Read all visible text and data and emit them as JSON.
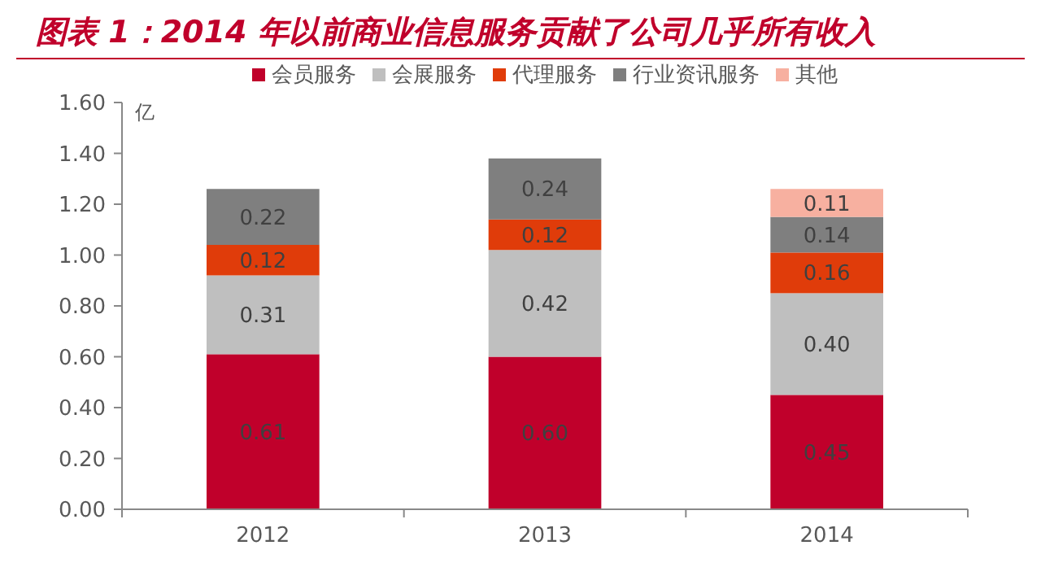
{
  "chart_data": {
    "type": "bar",
    "title": "图表 1：2014 年以前商业信息服务贡献了公司几乎所有收入",
    "ylabel": "亿",
    "categories": [
      "2012",
      "2013",
      "2014"
    ],
    "stacked": true,
    "legend": "top",
    "grid": false,
    "ylim": [
      0,
      1.6
    ],
    "yticks": [
      {
        "value": 0,
        "label": "0.00"
      },
      {
        "value": 0.2,
        "label": "0.20"
      },
      {
        "value": 0.4,
        "label": "0.40"
      },
      {
        "value": 0.6,
        "label": "0.60"
      },
      {
        "value": 0.8,
        "label": "0.80"
      },
      {
        "value": 1,
        "label": "1.00"
      },
      {
        "value": 1.2,
        "label": "1.20"
      },
      {
        "value": 1.4,
        "label": "1.40"
      },
      {
        "value": 1.6,
        "label": "1.60"
      }
    ],
    "series": [
      {
        "name": "会员服务",
        "color": "#c0002b",
        "values": [
          0.61,
          0.6,
          0.45
        ],
        "value_labels": [
          "0.61",
          "0.60",
          "0.45"
        ]
      },
      {
        "name": "会展服务",
        "color": "#bfbfbf",
        "values": [
          0.31,
          0.42,
          0.4
        ],
        "value_labels": [
          "0.31",
          "0.42",
          "0.40"
        ]
      },
      {
        "name": "代理服务",
        "color": "#e03c0a",
        "values": [
          0.12,
          0.12,
          0.16
        ],
        "value_labels": [
          "0.12",
          "0.12",
          "0.16"
        ]
      },
      {
        "name": "行业资讯服务",
        "color": "#7f7f7f",
        "values": [
          0.22,
          0.24,
          0.14
        ],
        "value_labels": [
          "0.22",
          "0.24",
          "0.14"
        ]
      },
      {
        "name": "其他",
        "color": "#f7b0a0",
        "values": [
          null,
          null,
          0.11
        ],
        "value_labels": [
          null,
          null,
          "0.11"
        ]
      }
    ]
  }
}
